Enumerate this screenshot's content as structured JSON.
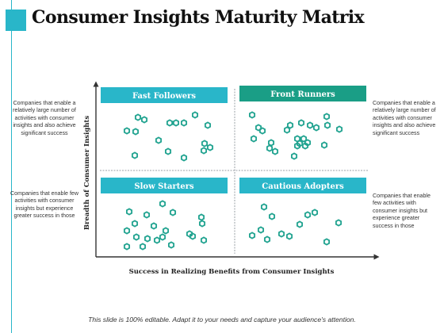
{
  "title": "Consumer Insights Maturity Matrix",
  "axes": {
    "y_label": "Breadth of Consumer Insights",
    "x_label": "Success in Realizing Benefits from Consumer Insights"
  },
  "quadrants": {
    "top_left": {
      "label": "Fast Followers"
    },
    "top_right": {
      "label": "Front Runners"
    },
    "bottom_left": {
      "label": "Slow Starters"
    },
    "bottom_right": {
      "label": "Cautious Adopters"
    }
  },
  "side_notes": {
    "top_left": "Companies that enable a relatively large number of activities with consumer insights and also achieve significant success",
    "top_right": "Companies that enable a relatively large number of activities with consumer insights and also achieve significant success",
    "bottom_left": "Companies that enable few activities with consumer insights but experience greater success in those",
    "bottom_right": "Companies that enable few activities with consumer insights but experience greater success in those"
  },
  "footer": "This slide is 100% editable. Adapt it to your needs and capture your audience's attention.",
  "colors": {
    "accent": "#29b6c9",
    "front_runners_header": "#1a9e86",
    "marker": "#21a390",
    "divider": "#9aa0a6",
    "axis": "#333333"
  },
  "icons": {
    "marker": "hexagon-marker-icon"
  }
}
